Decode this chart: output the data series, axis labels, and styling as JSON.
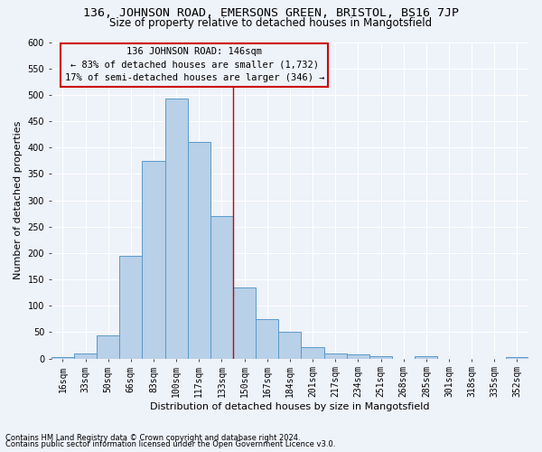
{
  "title1": "136, JOHNSON ROAD, EMERSONS GREEN, BRISTOL, BS16 7JP",
  "title2": "Size of property relative to detached houses in Mangotsfield",
  "xlabel": "Distribution of detached houses by size in Mangotsfield",
  "ylabel": "Number of detached properties",
  "categories": [
    "16sqm",
    "33sqm",
    "50sqm",
    "66sqm",
    "83sqm",
    "100sqm",
    "117sqm",
    "133sqm",
    "150sqm",
    "167sqm",
    "184sqm",
    "201sqm",
    "217sqm",
    "234sqm",
    "251sqm",
    "268sqm",
    "285sqm",
    "301sqm",
    "318sqm",
    "335sqm",
    "352sqm"
  ],
  "values": [
    3,
    9,
    43,
    195,
    375,
    493,
    411,
    270,
    135,
    75,
    50,
    22,
    10,
    7,
    5,
    0,
    4,
    0,
    0,
    0,
    2
  ],
  "bar_color": "#b8d0e8",
  "bar_edge_color": "#5a9aca",
  "property_label": "136 JOHNSON ROAD: 146sqm",
  "line1": "← 83% of detached houses are smaller (1,732)",
  "line2": "17% of semi-detached houses are larger (346) →",
  "vline_color": "#cc0000",
  "annotation_box_color": "#cc0000",
  "ylim": [
    0,
    600
  ],
  "yticks": [
    0,
    50,
    100,
    150,
    200,
    250,
    300,
    350,
    400,
    450,
    500,
    550,
    600
  ],
  "footnote1": "Contains HM Land Registry data © Crown copyright and database right 2024.",
  "footnote2": "Contains public sector information licensed under the Open Government Licence v3.0.",
  "background_color": "#eef2f9",
  "grid_color": "#ffffff",
  "title1_fontsize": 9.5,
  "title2_fontsize": 8.5,
  "xlabel_fontsize": 8,
  "ylabel_fontsize": 8,
  "tick_fontsize": 7,
  "annot_fontsize": 7.5,
  "footnote_fontsize": 6
}
